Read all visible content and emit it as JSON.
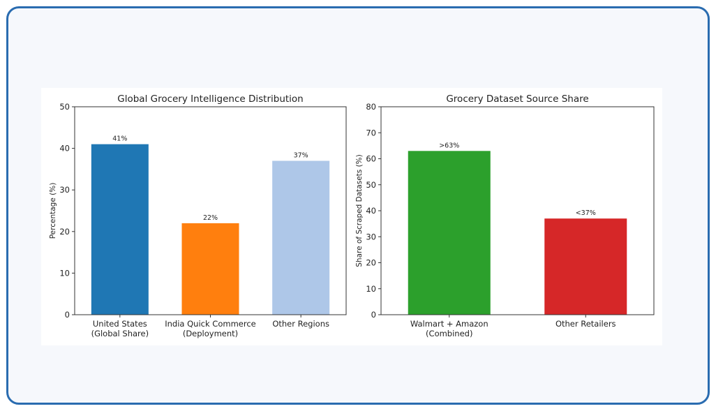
{
  "chart_data": [
    {
      "type": "bar",
      "title": "Global Grocery Intelligence Distribution",
      "ylabel": "Percentage (%)",
      "xlabel": "",
      "categories": [
        [
          "United States",
          "(Global Share)"
        ],
        [
          "India Quick Commerce",
          "(Deployment)"
        ],
        [
          "Other Regions"
        ]
      ],
      "values": [
        41,
        22,
        37
      ],
      "value_labels": [
        "41%",
        "22%",
        "37%"
      ],
      "colors": [
        "#1f77b4",
        "#ff7f0e",
        "#aec7e8"
      ],
      "ylim": [
        0,
        50
      ],
      "yticks": [
        "0",
        "10",
        "20",
        "30",
        "40",
        "50"
      ],
      "grid": false
    },
    {
      "type": "bar",
      "title": "Grocery Dataset Source Share",
      "ylabel": "Share of Scraped Datasets (%)",
      "xlabel": "",
      "categories": [
        [
          "Walmart + Amazon",
          "(Combined)"
        ],
        [
          "Other Retailers"
        ]
      ],
      "values": [
        63,
        37
      ],
      "value_labels": [
        ">63%",
        "<37%"
      ],
      "colors": [
        "#2ca02c",
        "#d62728"
      ],
      "ylim": [
        0,
        80
      ],
      "yticks": [
        "0",
        "10",
        "20",
        "30",
        "40",
        "50",
        "60",
        "70",
        "80"
      ],
      "grid": false
    }
  ]
}
